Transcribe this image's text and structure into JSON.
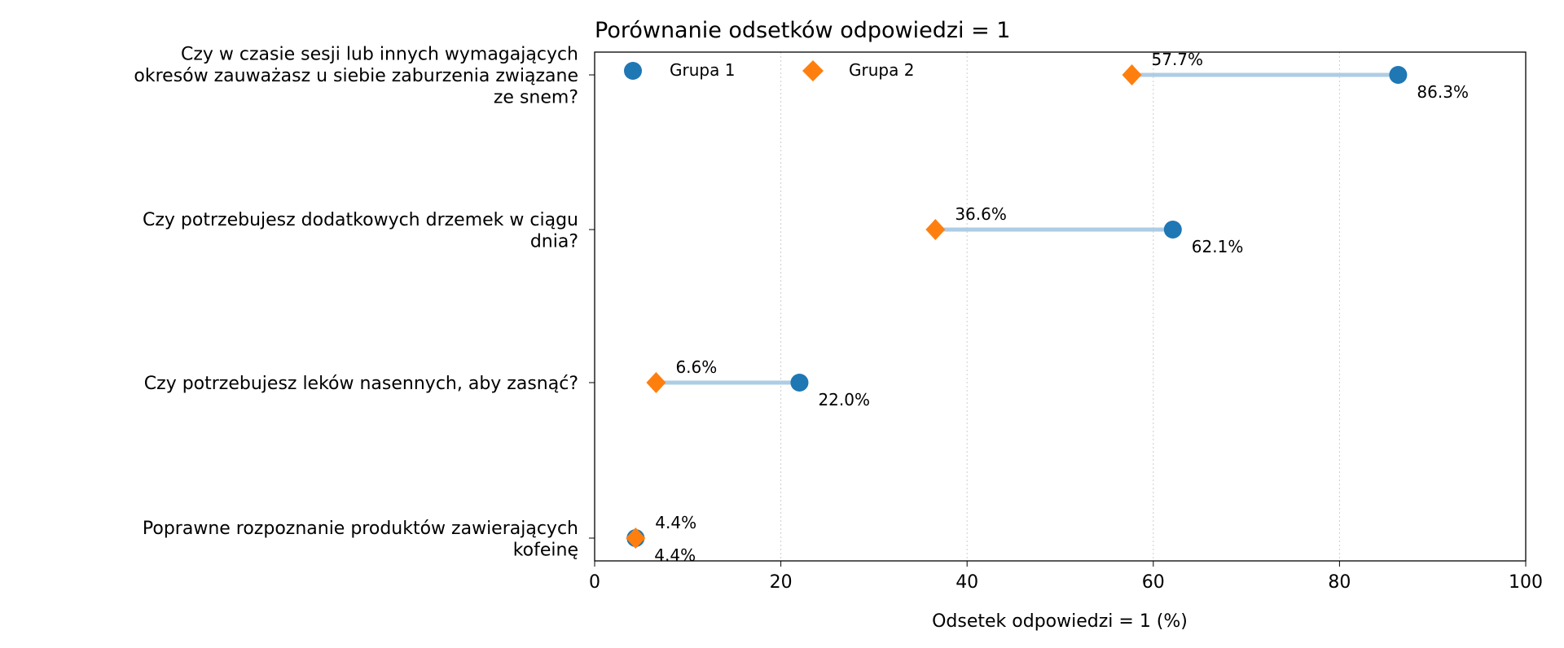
{
  "chart_data": {
    "type": "dumbbell",
    "title": "Porównanie odsetków odpowiedzi = 1",
    "xlabel": "Odsetek odpowiedzi = 1 (%)",
    "ylabel": "",
    "xlim": [
      0,
      100
    ],
    "xticks": [
      0,
      20,
      40,
      60,
      80,
      100
    ],
    "grid": "x dotted",
    "legend_placement": "top-left",
    "categories": [
      "Czy w czasie sesji lub innych wymagających\nokresów zauważasz u siebie zaburzenia związane\nze snem?",
      "Czy potrzebujesz dodatkowych drzemek w ciągu\ndnia?",
      "Czy potrzebujesz leków nasennych, aby zasnąć?",
      "Poprawne rozpoznanie produktów zawierających\nkofeinę"
    ],
    "series": [
      {
        "name": "Grupa 1",
        "marker": "circle",
        "color": "#1f77b4",
        "values": [
          86.3,
          62.1,
          22.0,
          4.4
        ],
        "labels": [
          "86.3%",
          "62.1%",
          "22.0%",
          "4.4%"
        ]
      },
      {
        "name": "Grupa 2",
        "marker": "diamond",
        "color": "#ff7f0e",
        "values": [
          57.7,
          36.6,
          6.6,
          4.4
        ],
        "labels": [
          "57.7%",
          "36.6%",
          "6.6%",
          "4.4%"
        ]
      }
    ],
    "connector_color": "#aecde4"
  }
}
